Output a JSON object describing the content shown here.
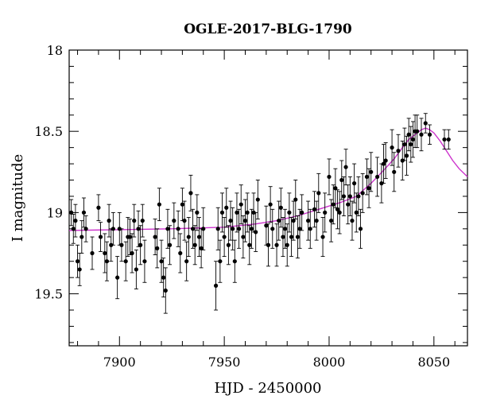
{
  "chart_data": {
    "type": "scatter",
    "title": "OGLE-2017-BLG-1790",
    "xlabel": "HJD - 2450000",
    "ylabel": "I magnitude",
    "xlim": [
      7876,
      8066
    ],
    "ylim": [
      18,
      19.82
    ],
    "y_inverted": true,
    "grid": false,
    "x_ticks": [
      7900,
      7950,
      8000,
      8050
    ],
    "x_tick_labels": [
      "7900",
      "7950",
      "8000",
      "8050"
    ],
    "y_ticks": [
      18,
      18.5,
      19,
      19.5
    ],
    "y_tick_labels": [
      "18",
      "18.5",
      "19",
      "19.5"
    ],
    "colors": {
      "points": "#000000",
      "model": "#cc33cc"
    },
    "series": [
      {
        "type": "scatter_errorbars",
        "points": [
          [
            7877,
            19.0,
            0.08
          ],
          [
            7878,
            19.1,
            0.09
          ],
          [
            7879,
            19.05,
            0.1
          ],
          [
            7880,
            19.3,
            0.1
          ],
          [
            7881,
            19.35,
            0.1
          ],
          [
            7882,
            19.15,
            0.1
          ],
          [
            7883,
            19.0,
            0.09
          ],
          [
            7884,
            19.1,
            0.08
          ],
          [
            7887,
            19.25,
            0.1
          ],
          [
            7890,
            18.97,
            0.08
          ],
          [
            7891,
            19.15,
            0.09
          ],
          [
            7893,
            19.25,
            0.12
          ],
          [
            7894,
            19.3,
            0.12
          ],
          [
            7895,
            19.05,
            0.1
          ],
          [
            7896,
            19.2,
            0.1
          ],
          [
            7897,
            19.1,
            0.1
          ],
          [
            7899,
            19.4,
            0.13
          ],
          [
            7900,
            19.1,
            0.1
          ],
          [
            7901,
            19.2,
            0.1
          ],
          [
            7903,
            19.3,
            0.12
          ],
          [
            7904,
            19.15,
            0.12
          ],
          [
            7905,
            19.15,
            0.11
          ],
          [
            7906,
            19.25,
            0.12
          ],
          [
            7907,
            19.05,
            0.1
          ],
          [
            7908,
            19.35,
            0.12
          ],
          [
            7909,
            19.1,
            0.11
          ],
          [
            7910,
            19.2,
            0.12
          ],
          [
            7911,
            19.05,
            0.1
          ],
          [
            7912,
            19.3,
            0.13
          ],
          [
            7917,
            19.15,
            0.11
          ],
          [
            7918,
            19.22,
            0.12
          ],
          [
            7919,
            18.95,
            0.1
          ],
          [
            7920,
            19.3,
            0.13
          ],
          [
            7921,
            19.4,
            0.12
          ],
          [
            7922,
            19.48,
            0.14
          ],
          [
            7923,
            19.1,
            0.12
          ],
          [
            7924,
            19.2,
            0.12
          ],
          [
            7926,
            19.05,
            0.11
          ],
          [
            7928,
            19.1,
            0.11
          ],
          [
            7929,
            19.25,
            0.12
          ],
          [
            7930,
            18.95,
            0.1
          ],
          [
            7931,
            19.05,
            0.12
          ],
          [
            7932,
            19.3,
            0.12
          ],
          [
            7933,
            19.15,
            0.12
          ],
          [
            7934,
            18.88,
            0.11
          ],
          [
            7935,
            19.1,
            0.12
          ],
          [
            7936,
            19.2,
            0.12
          ],
          [
            7937,
            19.0,
            0.11
          ],
          [
            7938,
            19.15,
            0.12
          ],
          [
            7939,
            19.22,
            0.12
          ],
          [
            7940,
            19.1,
            0.13
          ],
          [
            7946,
            19.45,
            0.15
          ],
          [
            7947,
            19.1,
            0.13
          ],
          [
            7948,
            19.3,
            0.13
          ],
          [
            7949,
            19.0,
            0.12
          ],
          [
            7950,
            19.15,
            0.12
          ],
          [
            7951,
            18.97,
            0.12
          ],
          [
            7952,
            19.2,
            0.12
          ],
          [
            7953,
            19.05,
            0.12
          ],
          [
            7954,
            19.1,
            0.13
          ],
          [
            7955,
            19.3,
            0.13
          ],
          [
            7956,
            19.0,
            0.12
          ],
          [
            7957,
            19.1,
            0.12
          ],
          [
            7958,
            18.95,
            0.12
          ],
          [
            7959,
            19.15,
            0.13
          ],
          [
            7960,
            19.05,
            0.13
          ],
          [
            7961,
            19.0,
            0.12
          ],
          [
            7962,
            19.2,
            0.12
          ],
          [
            7963,
            19.1,
            0.12
          ],
          [
            7964,
            19.0,
            0.12
          ],
          [
            7965,
            19.12,
            0.12
          ],
          [
            7966,
            18.92,
            0.12
          ],
          [
            7970,
            19.08,
            0.12
          ],
          [
            7971,
            19.2,
            0.13
          ],
          [
            7972,
            18.95,
            0.11
          ],
          [
            7973,
            19.1,
            0.12
          ],
          [
            7975,
            19.2,
            0.13
          ],
          [
            7976,
            19.05,
            0.12
          ],
          [
            7977,
            18.97,
            0.12
          ],
          [
            7978,
            19.15,
            0.12
          ],
          [
            7979,
            19.1,
            0.12
          ],
          [
            7980,
            19.2,
            0.13
          ],
          [
            7981,
            19.0,
            0.12
          ],
          [
            7982,
            19.15,
            0.12
          ],
          [
            7983,
            19.05,
            0.12
          ],
          [
            7984,
            18.92,
            0.12
          ],
          [
            7985,
            19.15,
            0.13
          ],
          [
            7986,
            19.1,
            0.12
          ],
          [
            7987,
            19.0,
            0.11
          ],
          [
            7990,
            19.05,
            0.12
          ],
          [
            7991,
            19.1,
            0.12
          ],
          [
            7993,
            18.98,
            0.11
          ],
          [
            7994,
            19.05,
            0.12
          ],
          [
            7995,
            18.88,
            0.12
          ],
          [
            7997,
            19.15,
            0.12
          ],
          [
            7998,
            19.0,
            0.12
          ],
          [
            8000,
            18.78,
            0.11
          ],
          [
            8001,
            19.05,
            0.13
          ],
          [
            8002,
            18.95,
            0.12
          ],
          [
            8003,
            18.85,
            0.12
          ],
          [
            8004,
            18.98,
            0.12
          ],
          [
            8005,
            19.0,
            0.13
          ],
          [
            8006,
            18.8,
            0.12
          ],
          [
            8007,
            18.9,
            0.12
          ],
          [
            8008,
            18.72,
            0.11
          ],
          [
            8009,
            18.95,
            0.12
          ],
          [
            8010,
            18.9,
            0.12
          ],
          [
            8011,
            19.05,
            0.12
          ],
          [
            8012,
            18.82,
            0.12
          ],
          [
            8013,
            19.0,
            0.12
          ],
          [
            8014,
            18.9,
            0.12
          ],
          [
            8015,
            19.1,
            0.12
          ],
          [
            8016,
            18.88,
            0.12
          ],
          [
            8018,
            18.78,
            0.11
          ],
          [
            8019,
            18.85,
            0.12
          ],
          [
            8020,
            18.75,
            0.12
          ],
          [
            8023,
            18.78,
            0.12
          ],
          [
            8025,
            18.82,
            0.12
          ],
          [
            8026,
            18.7,
            0.12
          ],
          [
            8027,
            18.68,
            0.11
          ],
          [
            8030,
            18.6,
            0.11
          ],
          [
            8031,
            18.75,
            0.12
          ],
          [
            8033,
            18.62,
            0.1
          ],
          [
            8035,
            18.68,
            0.12
          ],
          [
            8036,
            18.58,
            0.1
          ],
          [
            8037,
            18.65,
            0.12
          ],
          [
            8038,
            18.52,
            0.1
          ],
          [
            8039,
            18.58,
            0.11
          ],
          [
            8040,
            18.55,
            0.11
          ],
          [
            8041,
            18.5,
            0.1
          ],
          [
            8042,
            18.5,
            0.1
          ],
          [
            8044,
            18.52,
            0.1
          ],
          [
            8046,
            18.45,
            0.06
          ],
          [
            8048,
            18.52,
            0.06
          ],
          [
            8055,
            18.55,
            0.06
          ],
          [
            8057,
            18.55,
            0.06
          ]
        ]
      },
      {
        "type": "line",
        "points": [
          [
            7876,
            19.11
          ],
          [
            7900,
            19.105
          ],
          [
            7925,
            19.1
          ],
          [
            7950,
            19.09
          ],
          [
            7965,
            19.07
          ],
          [
            7975,
            19.05
          ],
          [
            7985,
            19.02
          ],
          [
            7995,
            18.98
          ],
          [
            8005,
            18.94
          ],
          [
            8013,
            18.9
          ],
          [
            8020,
            18.82
          ],
          [
            8026,
            18.74
          ],
          [
            8031,
            18.67
          ],
          [
            8035,
            18.6
          ],
          [
            8038,
            18.55
          ],
          [
            8041,
            18.52
          ],
          [
            8044,
            18.49
          ],
          [
            8046,
            18.48
          ],
          [
            8048,
            18.49
          ],
          [
            8050,
            18.51
          ],
          [
            8053,
            18.56
          ],
          [
            8056,
            18.62
          ],
          [
            8059,
            18.68
          ],
          [
            8062,
            18.73
          ],
          [
            8066,
            18.78
          ]
        ]
      }
    ]
  }
}
